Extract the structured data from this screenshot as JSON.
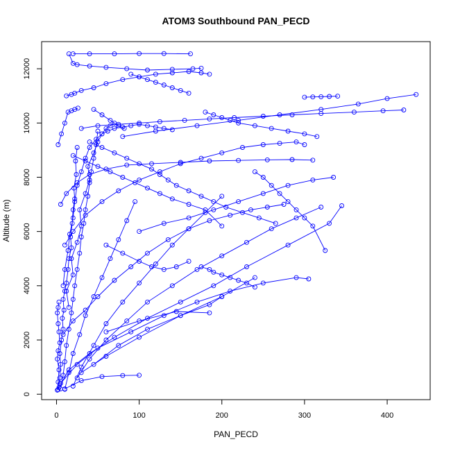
{
  "chart_data": {
    "type": "line",
    "title": "ATOM3 Southbound PAN_PECD",
    "xlabel": "PAN_PECD",
    "ylabel": "Altitude (m)",
    "xlim": [
      -18,
      452
    ],
    "ylim": [
      -200,
      13000
    ],
    "x_ticks": [
      0,
      100,
      200,
      300,
      400
    ],
    "y_ticks": [
      0,
      2000,
      4000,
      6000,
      8000,
      10000,
      12000
    ],
    "x_tick_labels": [
      "0",
      "100",
      "200",
      "300",
      "400"
    ],
    "y_tick_labels": [
      "0",
      "2000",
      "4000",
      "6000",
      "8000",
      "10000",
      "12000"
    ],
    "grid": false,
    "legend": "none",
    "color": "#0000ff",
    "marker": "open-circle",
    "series": [
      {
        "x": [
          1,
          2,
          3,
          1,
          2,
          4,
          3,
          2,
          1,
          2,
          3
        ],
        "y": [
          150,
          450,
          900,
          1300,
          1600,
          1900,
          2300,
          2600,
          3000,
          3200,
          3400
        ]
      },
      {
        "x": [
          2,
          4,
          5,
          4,
          6,
          8,
          7,
          9,
          8,
          10,
          12,
          14,
          15,
          18,
          17,
          19,
          20,
          22,
          21,
          24,
          23,
          25
        ],
        "y": [
          170,
          600,
          1100,
          1500,
          2000,
          2400,
          2800,
          3100,
          3500,
          3800,
          4100,
          4600,
          5000,
          5400,
          5800,
          6300,
          6800,
          7200,
          7600,
          8100,
          8600,
          9100
        ]
      },
      {
        "x": [
          5,
          8,
          10,
          12,
          15,
          18,
          20,
          22,
          25,
          28,
          30,
          33,
          35,
          38,
          40,
          42,
          45,
          48,
          50
        ],
        "y": [
          200,
          700,
          1200,
          1800,
          2400,
          3000,
          3500,
          4000,
          4600,
          5200,
          5800,
          6300,
          6800,
          7300,
          7800,
          8200,
          8700,
          9200,
          9700
        ]
      },
      {
        "x": [
          10,
          15,
          20,
          28,
          35,
          45,
          55,
          65,
          75,
          85,
          95
        ],
        "y": [
          180,
          800,
          1500,
          2200,
          2900,
          3600,
          4300,
          5000,
          5700,
          6400,
          7100
        ]
      },
      {
        "x": [
          20,
          30,
          45,
          60,
          80,
          100,
          120,
          140,
          160,
          180,
          200
        ],
        "y": [
          300,
          1000,
          1800,
          2600,
          3400,
          4100,
          4800,
          5500,
          6100,
          6700,
          7300
        ]
      },
      {
        "x": [
          25,
          40,
          60,
          85,
          110,
          140,
          170,
          200,
          230,
          260,
          290,
          320
        ],
        "y": [
          600,
          1300,
          2000,
          2700,
          3400,
          4000,
          4600,
          5100,
          5600,
          6100,
          6500,
          6900
        ]
      },
      {
        "x": [
          10,
          30,
          55,
          80,
          100
        ],
        "y": [
          200,
          500,
          650,
          690,
          700
        ]
      },
      {
        "x": [
          3,
          15,
          40,
          70,
          110,
          150,
          190,
          230,
          280,
          330,
          345
        ],
        "y": [
          250,
          900,
          1500,
          2100,
          2800,
          3400,
          4000,
          4700,
          5500,
          6300,
          6950
        ]
      },
      {
        "x": [
          5,
          25,
          50,
          90,
          130,
          170,
          210,
          250,
          290,
          305
        ],
        "y": [
          400,
          1100,
          1700,
          2300,
          2900,
          3400,
          3800,
          4100,
          4300,
          4250
        ]
      },
      {
        "x": [
          30,
          60,
          100,
          150,
          200,
          240
        ],
        "y": [
          800,
          1400,
          2100,
          2900,
          3600,
          4300
        ]
      },
      {
        "x": [
          45,
          75,
          110,
          150,
          185,
          200
        ],
        "y": [
          1100,
          1800,
          2400,
          2900,
          3300,
          3600
        ]
      },
      {
        "x": [
          60,
          100,
          145,
          185
        ],
        "y": [
          2300,
          2700,
          3050,
          3000
        ]
      },
      {
        "x": [
          15,
          12,
          20,
          18,
          25,
          30,
          28,
          35,
          40,
          38,
          45,
          50,
          55,
          60,
          65,
          70
        ],
        "y": [
          3200,
          3800,
          4400,
          5000,
          5600,
          6200,
          6800,
          7400,
          7900,
          8400,
          8900,
          9300,
          9600,
          9800,
          9900,
          10000
        ]
      },
      {
        "x": [
          8,
          10,
          14,
          16,
          20,
          22,
          25,
          30,
          35,
          40,
          48,
          55,
          62,
          70,
          80,
          90,
          100,
          110,
          120,
          130,
          140
        ],
        "y": [
          4000,
          4600,
          5300,
          5900,
          6500,
          7100,
          7700,
          8200,
          8700,
          9100,
          9400,
          9600,
          9700,
          9800,
          9850,
          9900,
          9950,
          9900,
          9850,
          9800,
          9750
        ]
      },
      {
        "x": [
          30,
          50,
          75,
          100,
          125,
          155,
          185,
          215,
          250,
          285,
          320,
          360,
          395,
          420
        ],
        "y": [
          9800,
          9900,
          9950,
          10000,
          10050,
          10100,
          10150,
          10200,
          10250,
          10300,
          10350,
          10400,
          10450,
          10480
        ]
      },
      {
        "x": [
          80,
          120,
          170,
          220,
          270,
          320,
          365,
          400,
          435
        ],
        "y": [
          9500,
          9700,
          9900,
          10100,
          10300,
          10500,
          10700,
          10900,
          11050
        ]
      },
      {
        "x": [
          300,
          310,
          320,
          330,
          340
        ],
        "y": [
          10950,
          10960,
          10970,
          10980,
          10990
        ]
      },
      {
        "x": [
          12,
          18,
          22,
          30,
          45,
          60,
          80,
          100,
          120,
          140,
          160,
          175,
          185
        ],
        "y": [
          11000,
          11050,
          11100,
          11200,
          11300,
          11450,
          11600,
          11700,
          11800,
          11850,
          11900,
          11850,
          11800
        ]
      },
      {
        "x": [
          15,
          20,
          25,
          40,
          60,
          85,
          110,
          140,
          165,
          175
        ],
        "y": [
          12550,
          12200,
          12150,
          12100,
          12050,
          12000,
          11950,
          11980,
          12000,
          12020
        ]
      },
      {
        "x": [
          20,
          40,
          70,
          100,
          130,
          162
        ],
        "y": [
          12550,
          12550,
          12550,
          12560,
          12560,
          12550
        ]
      },
      {
        "x": [
          10,
          20,
          35,
          55,
          75,
          100,
          125,
          150,
          175,
          200,
          225,
          250,
          270,
          290,
          300
        ],
        "y": [
          5500,
          6000,
          6600,
          7100,
          7500,
          7900,
          8200,
          8500,
          8700,
          8900,
          9100,
          9200,
          9250,
          9300,
          9200
        ]
      },
      {
        "x": [
          5,
          12,
          25,
          40,
          60,
          85,
          115,
          150,
          185,
          220,
          255,
          285,
          310
        ],
        "y": [
          7000,
          7400,
          7800,
          8100,
          8300,
          8450,
          8500,
          8550,
          8600,
          8620,
          8640,
          8650,
          8630
        ]
      },
      {
        "x": [
          40,
          55,
          70,
          85,
          100,
          115,
          125,
          135,
          145,
          160,
          175,
          190,
          205,
          225,
          245,
          265
        ],
        "y": [
          9300,
          9100,
          8900,
          8700,
          8500,
          8300,
          8100,
          7900,
          7700,
          7500,
          7300,
          7100,
          6900,
          6700,
          6500,
          6300
        ]
      },
      {
        "x": [
          20,
          35,
          50,
          65,
          80,
          95,
          110,
          125,
          140,
          160,
          180,
          200
        ],
        "y": [
          8800,
          8600,
          8400,
          8200,
          8000,
          7800,
          7600,
          7400,
          7200,
          7000,
          6800,
          6200
        ]
      },
      {
        "x": [
          180,
          190,
          200,
          210,
          220,
          240,
          260,
          280,
          300,
          315
        ],
        "y": [
          10400,
          10300,
          10200,
          10100,
          10000,
          9900,
          9800,
          9700,
          9600,
          9500
        ]
      },
      {
        "x": [
          100,
          130,
          160,
          190,
          220,
          250,
          280,
          310,
          335
        ],
        "y": [
          6000,
          6300,
          6500,
          6800,
          7100,
          7400,
          7700,
          7900,
          8000
        ]
      },
      {
        "x": [
          60,
          80,
          100,
          115,
          130,
          145,
          160
        ],
        "y": [
          5500,
          5200,
          4900,
          4700,
          4600,
          4700,
          4900
        ]
      },
      {
        "x": [
          8,
          20,
          35,
          50,
          70,
          90,
          110,
          135,
          160,
          185,
          210,
          235,
          255,
          275
        ],
        "y": [
          2200,
          2700,
          3100,
          3600,
          4200,
          4700,
          5200,
          5700,
          6100,
          6400,
          6600,
          6800,
          6900,
          7000
        ]
      },
      {
        "x": [
          45,
          55,
          65,
          75,
          82
        ],
        "y": [
          10500,
          10300,
          10100,
          9900,
          9800
        ]
      },
      {
        "x": [
          2,
          6,
          10,
          14,
          18,
          22,
          26
        ],
        "y": [
          9200,
          9600,
          10000,
          10400,
          10450,
          10500,
          10550
        ]
      },
      {
        "x": [
          90,
          100,
          110,
          120,
          130,
          140,
          150,
          160
        ],
        "y": [
          11800,
          11700,
          11600,
          11500,
          11400,
          11300,
          11200,
          11100
        ]
      },
      {
        "x": [
          175,
          185,
          190,
          200,
          210,
          220,
          230,
          240
        ],
        "y": [
          4700,
          4600,
          4500,
          4400,
          4300,
          4200,
          4100,
          3950
        ]
      },
      {
        "x": [
          240,
          250,
          260,
          270,
          280,
          290,
          300,
          310,
          325
        ],
        "y": [
          8200,
          8000,
          7700,
          7400,
          7100,
          6800,
          6500,
          6200,
          5300
        ]
      }
    ]
  }
}
